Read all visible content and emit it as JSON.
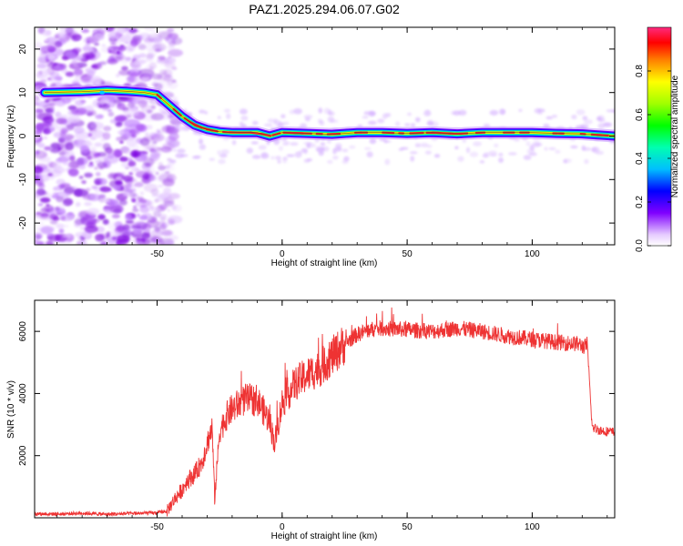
{
  "title": "PAZ1.2025.294.06.07.G02",
  "colors": {
    "snr_line": "#ee3333",
    "ridge_line": "#333333",
    "noise": "#8a2be2"
  },
  "chart_data": [
    {
      "type": "heatmap",
      "title": "PAZ1.2025.294.06.07.G02",
      "xlabel": "Height of straight line (km)",
      "ylabel": "Frequency (Hz)",
      "xlim": [
        -99,
        133
      ],
      "ylim": [
        -25,
        25
      ],
      "xticks": [
        -50,
        0,
        50,
        100
      ],
      "yticks": [
        -20,
        -10,
        0,
        10,
        20
      ],
      "noise_region_x": [
        -99,
        -46
      ],
      "ridge": {
        "x": [
          -95,
          -80,
          -70,
          -62,
          -55,
          -50,
          -45,
          -40,
          -35,
          -30,
          -25,
          -20,
          -10,
          -5,
          0,
          10,
          20,
          30,
          40,
          50,
          60,
          70,
          80,
          90,
          100,
          110,
          120,
          133
        ],
        "y": [
          10,
          10.2,
          10.5,
          10.3,
          10,
          9.5,
          7,
          4.5,
          2.5,
          1.5,
          1,
          0.8,
          0.8,
          0,
          0.8,
          0.6,
          0.4,
          0.8,
          0.8,
          0.6,
          0.8,
          0.5,
          0.8,
          0.8,
          0.8,
          0.6,
          0.5,
          0
        ]
      },
      "colorbar": {
        "label": "Normalized spectral amplitude",
        "range": [
          0,
          1
        ],
        "ticks": [
          "0.0",
          "0.2",
          "0.4",
          "0.6",
          "0.8"
        ]
      }
    },
    {
      "type": "line",
      "xlabel": "Height of straight line (km)",
      "ylabel": "SNR (10 * v/v)",
      "xlim": [
        -99,
        133
      ],
      "ylim": [
        0,
        7000
      ],
      "xticks": [
        -50,
        0,
        50,
        100
      ],
      "yticks": [
        2000,
        4000,
        6000
      ],
      "series": [
        {
          "name": "SNR",
          "x": [
            -99,
            -90,
            -80,
            -70,
            -60,
            -50,
            -46,
            -43,
            -40,
            -38,
            -35,
            -32,
            -30,
            -28,
            -27,
            -25,
            -22,
            -20,
            -15,
            -10,
            -5,
            -3,
            0,
            5,
            10,
            15,
            20,
            25,
            30,
            35,
            40,
            50,
            60,
            70,
            80,
            90,
            100,
            110,
            118,
            121,
            122,
            124,
            128,
            133
          ],
          "y": [
            130,
            120,
            150,
            110,
            140,
            160,
            220,
            600,
            900,
            1200,
            1400,
            1800,
            2400,
            2900,
            600,
            2800,
            3300,
            3500,
            3800,
            3800,
            3100,
            2400,
            3700,
            4300,
            4600,
            4800,
            5200,
            5600,
            5900,
            6050,
            6100,
            6050,
            6000,
            6100,
            6000,
            5850,
            5750,
            5650,
            5600,
            5500,
            5600,
            2900,
            2800,
            2750
          ]
        }
      ]
    }
  ]
}
